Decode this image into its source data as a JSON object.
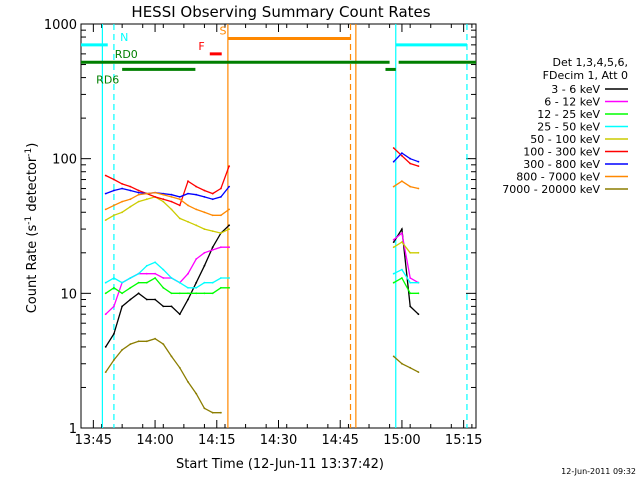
{
  "chart_data": {
    "type": "line",
    "title": "HESSI Observing Summary Count Rates",
    "xlabel": "Start Time (12-Jun-11 13:37:42)",
    "ylabel_main": "Count Rate (s",
    "ylabel_sup1": "-1",
    "ylabel_mid": " detector",
    "ylabel_sup2": "-1",
    "ylabel_end": ")",
    "yscale": "log",
    "ylim": [
      1,
      1000
    ],
    "xlim_min": [
      822,
      918
    ],
    "x_ticks": [
      {
        "min": 825,
        "label": "13:45"
      },
      {
        "min": 840,
        "label": "14:00"
      },
      {
        "min": 855,
        "label": "14:15"
      },
      {
        "min": 870,
        "label": "14:30"
      },
      {
        "min": 885,
        "label": "14:45"
      },
      {
        "min": 900,
        "label": "15:00"
      },
      {
        "min": 915,
        "label": "15:15"
      }
    ],
    "y_ticks": [
      {
        "val": 1,
        "label": "1"
      },
      {
        "val": 10,
        "label": "10"
      },
      {
        "val": 100,
        "label": "100"
      },
      {
        "val": 1000,
        "label": "1000"
      }
    ],
    "legend_header": [
      "Det 1,3,4,5,6,",
      "FDecim 1, Att 0"
    ],
    "series": [
      {
        "name": "3 - 6 keV",
        "color": "#000000",
        "segments": [
          [
            [
              828,
              4
            ],
            [
              830,
              5
            ],
            [
              832,
              8
            ],
            [
              834,
              9
            ],
            [
              836,
              10
            ],
            [
              838,
              9
            ],
            [
              840,
              9
            ],
            [
              842,
              8
            ],
            [
              844,
              8
            ],
            [
              846,
              7
            ],
            [
              848,
              9
            ],
            [
              850,
              12
            ],
            [
              852,
              16
            ],
            [
              854,
              22
            ],
            [
              856,
              28
            ],
            [
              858,
              32
            ]
          ],
          [
            [
              898,
              24
            ],
            [
              900,
              30
            ],
            [
              902,
              8
            ],
            [
              904,
              7
            ]
          ]
        ]
      },
      {
        "name": "6 - 12 keV",
        "color": "#ff00ff",
        "segments": [
          [
            [
              828,
              7
            ],
            [
              830,
              8
            ],
            [
              832,
              12
            ],
            [
              834,
              13
            ],
            [
              836,
              14
            ],
            [
              838,
              14
            ],
            [
              840,
              14
            ],
            [
              842,
              13
            ],
            [
              844,
              13
            ],
            [
              846,
              12
            ],
            [
              848,
              14
            ],
            [
              850,
              18
            ],
            [
              852,
              20
            ],
            [
              854,
              21
            ],
            [
              856,
              22
            ],
            [
              858,
              22
            ]
          ],
          [
            [
              898,
              25
            ],
            [
              900,
              28
            ],
            [
              902,
              13
            ],
            [
              904,
              12
            ]
          ]
        ]
      },
      {
        "name": "12 - 25 keV",
        "color": "#00ff00",
        "segments": [
          [
            [
              828,
              10
            ],
            [
              830,
              11
            ],
            [
              832,
              10
            ],
            [
              834,
              11
            ],
            [
              836,
              12
            ],
            [
              838,
              12
            ],
            [
              840,
              13
            ],
            [
              842,
              11
            ],
            [
              844,
              10
            ],
            [
              846,
              10
            ],
            [
              848,
              10
            ],
            [
              850,
              10
            ],
            [
              852,
              10
            ],
            [
              854,
              10
            ],
            [
              856,
              11
            ],
            [
              858,
              11
            ]
          ],
          [
            [
              898,
              12
            ],
            [
              900,
              13
            ],
            [
              902,
              10
            ],
            [
              904,
              10
            ]
          ]
        ]
      },
      {
        "name": "25 - 50 keV",
        "color": "#00ffff",
        "segments": [
          [
            [
              828,
              12
            ],
            [
              830,
              13
            ],
            [
              832,
              12
            ],
            [
              834,
              13
            ],
            [
              836,
              14
            ],
            [
              838,
              16
            ],
            [
              840,
              17
            ],
            [
              842,
              15
            ],
            [
              844,
              13
            ],
            [
              846,
              12
            ],
            [
              848,
              11
            ],
            [
              850,
              11
            ],
            [
              852,
              12
            ],
            [
              854,
              12
            ],
            [
              856,
              13
            ],
            [
              858,
              13
            ]
          ],
          [
            [
              898,
              14
            ],
            [
              900,
              15
            ],
            [
              902,
              12
            ],
            [
              904,
              12
            ]
          ]
        ]
      },
      {
        "name": "50 - 100 keV",
        "color": "#cccc00",
        "segments": [
          [
            [
              828,
              35
            ],
            [
              830,
              38
            ],
            [
              832,
              40
            ],
            [
              834,
              44
            ],
            [
              836,
              48
            ],
            [
              838,
              50
            ],
            [
              840,
              52
            ],
            [
              842,
              48
            ],
            [
              844,
              42
            ],
            [
              846,
              36
            ],
            [
              848,
              34
            ],
            [
              850,
              32
            ],
            [
              852,
              30
            ],
            [
              854,
              29
            ],
            [
              856,
              28
            ],
            [
              858,
              30
            ]
          ],
          [
            [
              898,
              22
            ],
            [
              900,
              24
            ],
            [
              902,
              20
            ],
            [
              904,
              20
            ]
          ]
        ]
      },
      {
        "name": "100 - 300 keV",
        "color": "#ff0000",
        "segments": [
          [
            [
              828,
              75
            ],
            [
              830,
              70
            ],
            [
              832,
              65
            ],
            [
              834,
              62
            ],
            [
              836,
              58
            ],
            [
              838,
              55
            ],
            [
              840,
              52
            ],
            [
              842,
              50
            ],
            [
              844,
              48
            ],
            [
              846,
              45
            ],
            [
              848,
              68
            ],
            [
              850,
              62
            ],
            [
              852,
              58
            ],
            [
              854,
              55
            ],
            [
              856,
              60
            ],
            [
              858,
              88
            ]
          ],
          [
            [
              898,
              120
            ],
            [
              900,
              105
            ],
            [
              902,
              92
            ],
            [
              904,
              88
            ]
          ]
        ]
      },
      {
        "name": "300 - 800 keV",
        "color": "#0000ff",
        "segments": [
          [
            [
              828,
              55
            ],
            [
              830,
              58
            ],
            [
              832,
              60
            ],
            [
              834,
              58
            ],
            [
              836,
              56
            ],
            [
              838,
              55
            ],
            [
              840,
              56
            ],
            [
              842,
              55
            ],
            [
              844,
              54
            ],
            [
              846,
              52
            ],
            [
              848,
              55
            ],
            [
              850,
              54
            ],
            [
              852,
              52
            ],
            [
              854,
              50
            ],
            [
              856,
              52
            ],
            [
              858,
              62
            ]
          ],
          [
            [
              898,
              95
            ],
            [
              900,
              110
            ],
            [
              902,
              100
            ],
            [
              904,
              95
            ]
          ]
        ]
      },
      {
        "name": "800 - 7000 keV",
        "color": "#ff8800",
        "segments": [
          [
            [
              828,
              42
            ],
            [
              830,
              45
            ],
            [
              832,
              48
            ],
            [
              834,
              50
            ],
            [
              836,
              54
            ],
            [
              838,
              55
            ],
            [
              840,
              56
            ],
            [
              842,
              54
            ],
            [
              844,
              52
            ],
            [
              846,
              50
            ],
            [
              848,
              45
            ],
            [
              850,
              42
            ],
            [
              852,
              40
            ],
            [
              854,
              38
            ],
            [
              856,
              38
            ],
            [
              858,
              42
            ]
          ],
          [
            [
              898,
              62
            ],
            [
              900,
              68
            ],
            [
              902,
              62
            ],
            [
              904,
              60
            ]
          ]
        ]
      },
      {
        "name": "7000 - 20000 keV",
        "color": "#8b7d00",
        "segments": [
          [
            [
              828,
              2.6
            ],
            [
              830,
              3.2
            ],
            [
              832,
              3.8
            ],
            [
              834,
              4.2
            ],
            [
              836,
              4.4
            ],
            [
              838,
              4.4
            ],
            [
              840,
              4.6
            ],
            [
              842,
              4.2
            ],
            [
              844,
              3.4
            ],
            [
              846,
              2.8
            ],
            [
              848,
              2.2
            ],
            [
              850,
              1.8
            ],
            [
              852,
              1.4
            ],
            [
              854,
              1.3
            ],
            [
              856,
              1.3
            ]
          ],
          [
            [
              898,
              3.4
            ],
            [
              900,
              3.0
            ],
            [
              902,
              2.8
            ],
            [
              904,
              2.6
            ]
          ]
        ]
      }
    ],
    "vertical_lines": [
      {
        "min": 827.2,
        "color": "#00ffff",
        "style": "solid"
      },
      {
        "min": 830.0,
        "color": "#00ffff",
        "style": "dashed"
      },
      {
        "min": 857.7,
        "color": "#ff8800",
        "style": "solid"
      },
      {
        "min": 887.5,
        "color": "#ff8800",
        "style": "dashed"
      },
      {
        "min": 888.8,
        "color": "#ff8800",
        "style": "solid"
      },
      {
        "min": 898.5,
        "color": "#00ffff",
        "style": "solid"
      },
      {
        "min": 915.8,
        "color": "#00ffff",
        "style": "dashed"
      }
    ],
    "flag_bars": [
      {
        "label": "N",
        "color": "#00ffff",
        "y": 700,
        "ranges": [
          [
            822,
            828.5
          ],
          [
            898.5,
            915.8
          ]
        ],
        "label_min": 832.5
      },
      {
        "label": "S",
        "color": "#ff8800",
        "y": 780,
        "ranges": [
          [
            857.7,
            887.5
          ]
        ],
        "label_min": 856.5
      },
      {
        "label": "F",
        "color": "#ff0000",
        "y": 600,
        "ranges": [
          [
            853.3,
            856.2
          ]
        ],
        "label_min": 851.3
      },
      {
        "label": "RD0",
        "color": "#007f00",
        "y": 520,
        "ranges": [
          [
            822,
            897
          ],
          [
            899.2,
            918
          ]
        ],
        "label_min": 833.0
      },
      {
        "label": "RD6",
        "color": "#007f00",
        "y": 460,
        "ranges": [
          [
            832,
            849.8
          ]
        ],
        "label_min": 828.5
      }
    ],
    "flag_segments_extra": [
      {
        "color": "#007f00",
        "y": 460,
        "range": [
          896,
          898.5
        ]
      }
    ],
    "grid": false,
    "legend_position": "right",
    "timestamp": "12-Jun-2011 09:32"
  }
}
